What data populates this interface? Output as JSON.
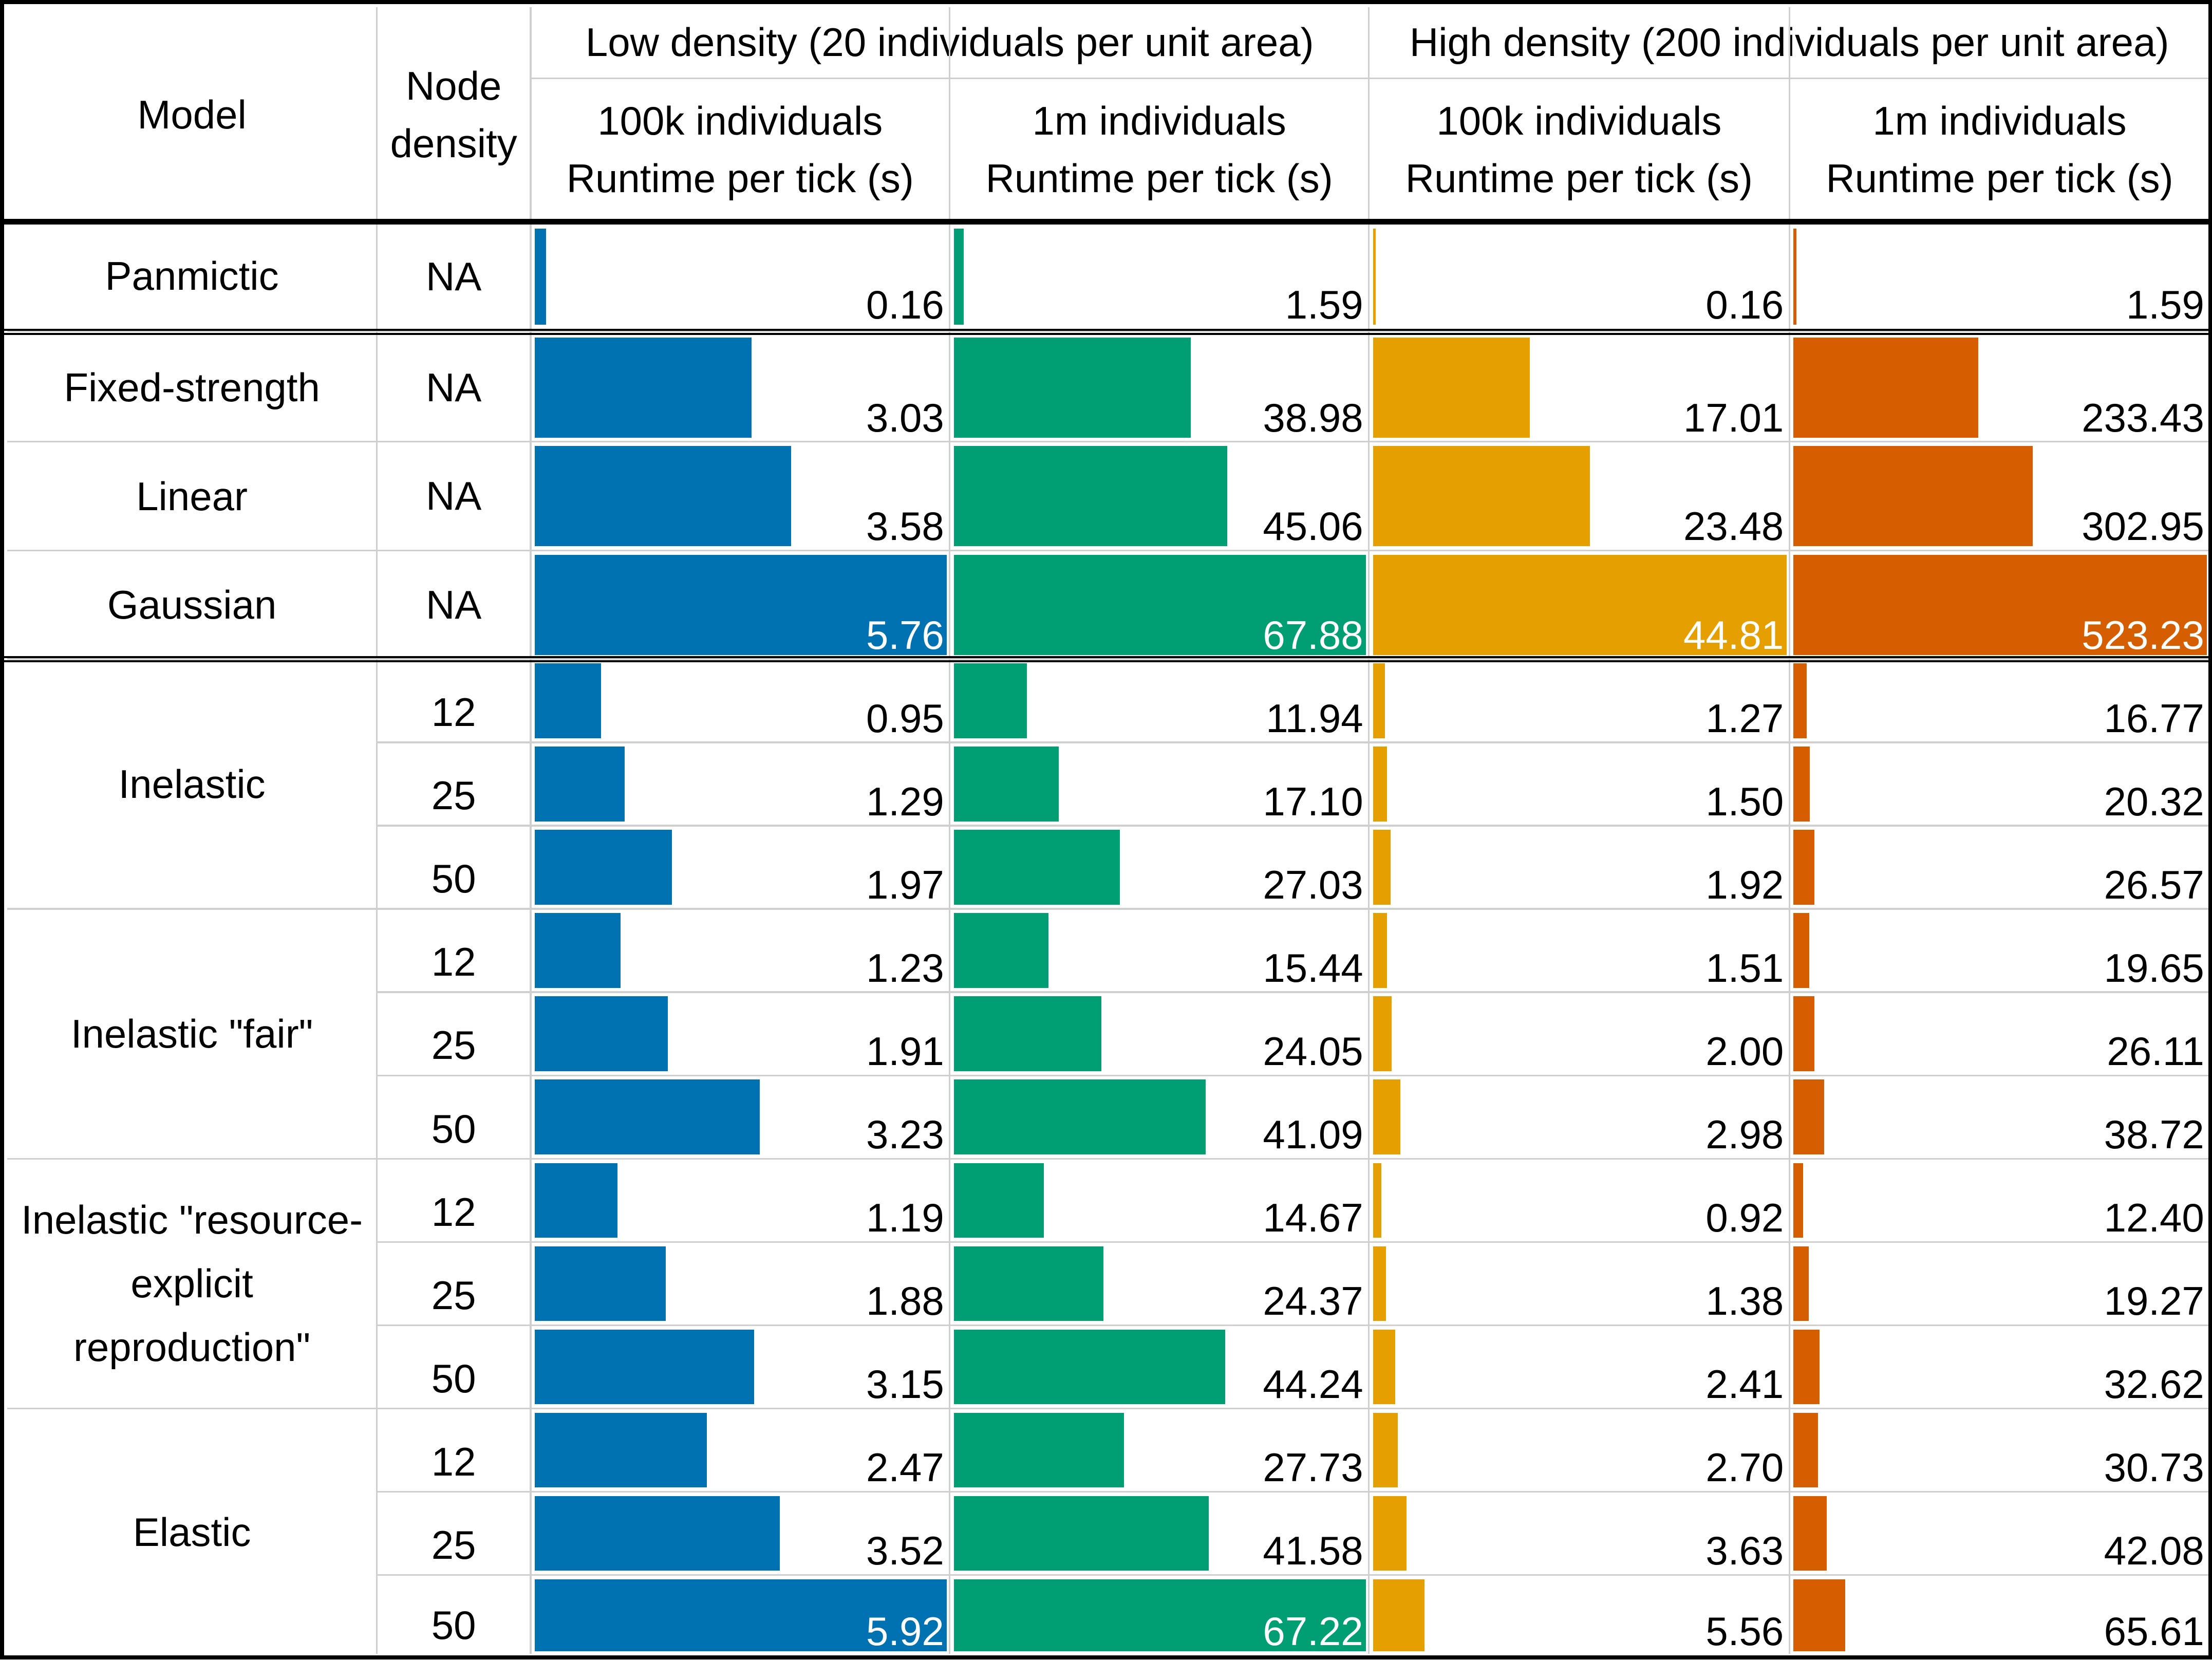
{
  "headers": {
    "model": "Model",
    "node_density": "Node density",
    "low_density": "Low density (20 individuals per unit area)",
    "high_density": "High density (200 individuals per unit area)",
    "columns": [
      {
        "size": "100k individuals",
        "metric": "Runtime per tick (s)"
      },
      {
        "size": "1m individuals",
        "metric": "Runtime per tick (s)"
      },
      {
        "size": "100k individuals",
        "metric": "Runtime per tick (s)"
      },
      {
        "size": "1m individuals",
        "metric": "Runtime per tick (s)"
      }
    ]
  },
  "colors": [
    "#0072b2",
    "#009e73",
    "#e69f00",
    "#d55e00"
  ],
  "chart_data": {
    "type": "table",
    "groups": [
      {
        "model": "Panmictic",
        "rows": [
          {
            "node": "NA",
            "values": [
              "0.16",
              "1.59",
              "0.16",
              "1.59"
            ]
          }
        ]
      },
      {
        "model": "Fixed-strength",
        "rows": [
          {
            "node": "NA",
            "values": [
              "3.03",
              "38.98",
              "17.01",
              "233.43"
            ]
          }
        ]
      },
      {
        "model": "Linear",
        "rows": [
          {
            "node": "NA",
            "values": [
              "3.58",
              "45.06",
              "23.48",
              "302.95"
            ]
          }
        ]
      },
      {
        "model": "Gaussian",
        "rows": [
          {
            "node": "NA",
            "values": [
              "5.76",
              "67.88",
              "44.81",
              "523.23"
            ]
          }
        ]
      },
      {
        "model": "Inelastic",
        "rows": [
          {
            "node": "12",
            "values": [
              "0.95",
              "11.94",
              "1.27",
              "16.77"
            ]
          },
          {
            "node": "25",
            "values": [
              "1.29",
              "17.10",
              "1.50",
              "20.32"
            ]
          },
          {
            "node": "50",
            "values": [
              "1.97",
              "27.03",
              "1.92",
              "26.57"
            ]
          }
        ]
      },
      {
        "model": "Inelastic \"fair\"",
        "rows": [
          {
            "node": "12",
            "values": [
              "1.23",
              "15.44",
              "1.51",
              "19.65"
            ]
          },
          {
            "node": "25",
            "values": [
              "1.91",
              "24.05",
              "2.00",
              "26.11"
            ]
          },
          {
            "node": "50",
            "values": [
              "3.23",
              "41.09",
              "2.98",
              "38.72"
            ]
          }
        ]
      },
      {
        "model": "Inelastic \"resource-explicit reproduction\"",
        "rows": [
          {
            "node": "12",
            "values": [
              "1.19",
              "14.67",
              "0.92",
              "12.40"
            ]
          },
          {
            "node": "25",
            "values": [
              "1.88",
              "24.37",
              "1.38",
              "19.27"
            ]
          },
          {
            "node": "50",
            "values": [
              "3.15",
              "44.24",
              "2.41",
              "32.62"
            ]
          }
        ]
      },
      {
        "model": "Elastic",
        "rows": [
          {
            "node": "12",
            "values": [
              "2.47",
              "27.73",
              "2.70",
              "30.73"
            ]
          },
          {
            "node": "25",
            "values": [
              "3.52",
              "41.58",
              "3.63",
              "42.08"
            ]
          },
          {
            "node": "50",
            "values": [
              "5.92",
              "67.22",
              "5.56",
              "65.61"
            ]
          }
        ]
      }
    ]
  }
}
